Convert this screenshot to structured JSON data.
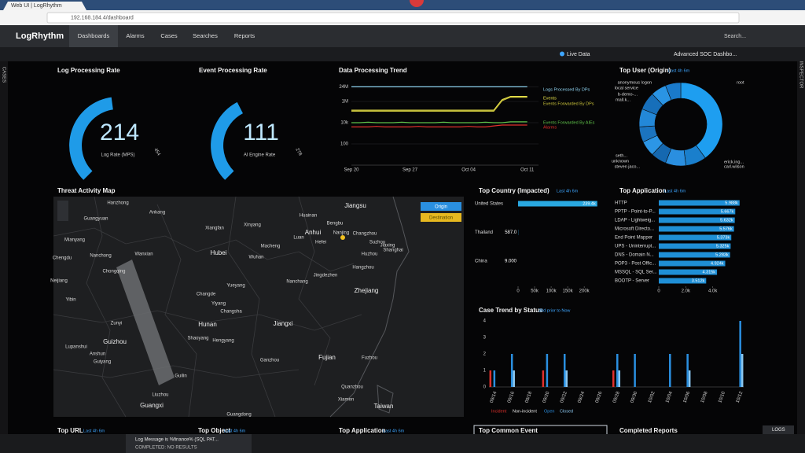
{
  "browser": {
    "tab": "Web UI | LogRhythm",
    "url": "192.168.184.4/dashboard"
  },
  "nav": {
    "brand": "LogRhythm",
    "items": [
      "Dashboards",
      "Alarms",
      "Cases",
      "Searches",
      "Reports"
    ],
    "search": "Search..."
  },
  "toolbar": {
    "live": "Live Data",
    "dashboard": "Advanced SOC Dashbo..."
  },
  "sidebars": {
    "left": "CASES",
    "right": "INSPECTOR"
  },
  "gauges": [
    {
      "title": "Log Processing Rate",
      "value": 214,
      "caption": "Log Rate (MPS)",
      "max": 454
    },
    {
      "title": "Event Processing Rate",
      "value": 111,
      "caption": "AI Engine Rate",
      "max": 278
    }
  ],
  "trend": {
    "title": "Data Processing Trend",
    "log_scale": true,
    "grid": true,
    "categories": [
      "Sep 20",
      null,
      null,
      null,
      null,
      null,
      null,
      "Sep 27",
      null,
      null,
      null,
      null,
      null,
      null,
      "Oct 04",
      null,
      null,
      null,
      null,
      null,
      null,
      "Oct 11"
    ],
    "ylim": [
      1,
      60000000
    ],
    "yticks": [
      {
        "value": 24000000,
        "label": "24M"
      },
      {
        "value": 1000000,
        "label": "1M"
      },
      {
        "value": 10000,
        "label": "10k"
      },
      100
    ],
    "series": [
      {
        "name": "Logs Processed By DPs",
        "color": "#8fd3f0",
        "values": [
          24000000,
          24000000,
          24000000,
          24000000,
          24000000,
          24000000,
          24000000,
          24000000,
          24000000,
          24000000,
          24000000,
          24000000,
          24000000,
          24000000,
          24000000,
          24000000,
          24000000,
          24000000,
          24000000,
          24000000,
          24000000,
          24000000
        ]
      },
      {
        "name": "Events",
        "color": "#e6e04a",
        "values": [
          150000,
          150000,
          150000,
          150000,
          150000,
          150000,
          150000,
          150000,
          150000,
          150000,
          150000,
          150000,
          150000,
          150000,
          150000,
          150000,
          150000,
          150000,
          1500000,
          3000000,
          3000000,
          3000000
        ]
      },
      {
        "name": "Events Forwarded By DPs",
        "color": "#c9c23a",
        "values": [
          120000,
          120000,
          120000,
          120000,
          120000,
          120000,
          120000,
          120000,
          120000,
          120000,
          120000,
          120000,
          120000,
          120000,
          120000,
          120000,
          120000,
          120000,
          1200000,
          2500000,
          2500000,
          2500000
        ]
      },
      {
        "name": "Events Forwarded By AIEs",
        "color": "#5fc24a",
        "values": [
          10000,
          10000,
          11000,
          10000,
          10000,
          10000,
          11000,
          10000,
          10000,
          10000,
          10000,
          11000,
          10000,
          10000,
          10000,
          10000,
          11000,
          10000,
          10000,
          12000,
          12000,
          12000
        ]
      },
      {
        "name": "Alarms",
        "color": "#e0302c",
        "values": [
          4000,
          4000,
          4000,
          4500,
          4000,
          4000,
          4000,
          4000,
          4500,
          4000,
          4000,
          4000,
          4000,
          4000,
          4500,
          4000,
          4000,
          5000,
          6000,
          6000,
          6000,
          6000
        ]
      }
    ]
  },
  "top_user": {
    "title": "Top User (Origin)",
    "subtitle": "Last 4h 6m",
    "labels": [
      "root",
      "erick.ing...",
      "carl.wilson",
      "steven jaco...",
      "unknown",
      "seth...",
      "mall.k...",
      "b-demo-...",
      "local service",
      "anonymous logon"
    ],
    "values": [
      40,
      8,
      8,
      6,
      6,
      6,
      7,
      7,
      6,
      6
    ]
  },
  "map": {
    "title": "Threat Activity Map",
    "buttons": [
      "Origin",
      "Destination"
    ],
    "places": [
      "Hanzhong",
      "Ankang",
      "Guangyuan",
      "Xiangfan",
      "Xinyang",
      "Huainan",
      "Jiangsu",
      "Bengbu",
      "Anhui",
      "Nanjing",
      "Changzhou",
      "Luan",
      "Hefei",
      "Suzhou",
      "Shanghai",
      "Hubei",
      "Wuhan",
      "Macheng",
      "Huzhou",
      "Jiaxing",
      "Wanxian",
      "Nanchong",
      "Mianyang",
      "Chengdu",
      "Zhejiang",
      "Hangzhou",
      "Changde",
      "Yiyang",
      "Yueyang",
      "Changsha",
      "Nanchang",
      "Jingdezhen",
      "Hunan",
      "Jiangxi",
      "Guizhou",
      "Zunyi",
      "Guiyang",
      "Hengyang",
      "Ganzhou",
      "Fujian",
      "Fuzhou",
      "Guilin",
      "Guangxi",
      "Liuzhou",
      "Guangdong",
      "Taiwan",
      "Xiamen",
      "Quanzhou",
      "Shaoyang",
      "Lupanshui",
      "Anshun",
      "Yibin",
      "Chongqing",
      "Neijiang"
    ]
  },
  "top_country": {
    "title": "Top Country (Impacted)",
    "subtitle": "Last 4h 6m",
    "categories": [
      "United States",
      "Thailand",
      "China"
    ],
    "values": [
      239400,
      587,
      9
    ],
    "value_labels": [
      "239.4k",
      "587.0",
      "9.000"
    ],
    "color": "#29a8e0",
    "xlim": [
      0,
      240000
    ],
    "xticks": [
      0,
      {
        "value": 50000,
        "label": "50k"
      },
      {
        "value": 100000,
        "label": "100k"
      },
      {
        "value": 150000,
        "label": "150k"
      },
      {
        "value": 200000,
        "label": "200k"
      }
    ]
  },
  "top_application": {
    "title": "Top Application",
    "subtitle": "Last 4h 6m",
    "categories": [
      "HTTP",
      "PPTP - Point-to-P...",
      "LDAP - Lightweig...",
      "Microsoft Directo...",
      "End Point Mapper",
      "UPS - Uninterrupt...",
      "DNS - Domain N...",
      "POP3 - Post Offic...",
      "MSSQL - SQL Ser...",
      "BOOTP - Server"
    ],
    "values": [
      5988,
      5667,
      5632,
      5576,
      5373,
      5325,
      5283,
      4924,
      4315,
      3512
    ],
    "value_labels": [
      "5.988k",
      "5.667k",
      "5.632k",
      "5.576k",
      "5.373k",
      "5.325k",
      "5.283k",
      "4.924k",
      "4.315k",
      "3.512k"
    ],
    "color": "#1f8fd6",
    "xlim": [
      0,
      6000
    ],
    "xticks": [
      0,
      {
        "value": 2000,
        "label": "2.0k"
      },
      {
        "value": 4000,
        "label": "4.0k"
      }
    ]
  },
  "case_trend": {
    "title": "Case Trend by Status",
    "subtitle": "30d prior to Now",
    "categories": [
      "09/14",
      null,
      "09/16",
      null,
      "09/18",
      null,
      "09/20",
      null,
      "09/22",
      null,
      "09/24",
      null,
      "09/26",
      null,
      "09/28",
      null,
      "09/30",
      null,
      "10/02",
      null,
      "10/04",
      null,
      "10/06",
      null,
      "10/08",
      null,
      "10/10",
      null,
      "10/12"
    ],
    "ylim": [
      0,
      4
    ],
    "yticks": [
      0,
      1,
      2,
      3,
      4
    ],
    "series": [
      {
        "name": "Incident",
        "color": "#e0302c",
        "values": [
          1,
          0,
          0,
          0,
          0,
          0,
          1,
          0,
          0,
          0,
          0,
          0,
          0,
          0,
          1,
          0,
          0,
          0,
          0,
          0,
          0,
          0,
          0,
          0,
          0,
          0,
          0,
          0,
          0
        ]
      },
      {
        "name": "Non-incident",
        "color": "#e8e8e8",
        "values": [
          0,
          0,
          0,
          0,
          0,
          0,
          0,
          0,
          0,
          0,
          0,
          0,
          0,
          0,
          0,
          0,
          0,
          0,
          0,
          0,
          0,
          0,
          0,
          0,
          0,
          0,
          0,
          0,
          0
        ]
      },
      {
        "name": "Open",
        "color": "#2a8fe0",
        "values": [
          1,
          0,
          2,
          0,
          0,
          0,
          2,
          0,
          2,
          0,
          0,
          0,
          0,
          0,
          2,
          0,
          2,
          0,
          0,
          0,
          2,
          0,
          2,
          0,
          0,
          0,
          0,
          0,
          4
        ]
      },
      {
        "name": "Closed",
        "color": "#8cc8f0",
        "values": [
          0,
          0,
          1,
          0,
          0,
          0,
          0,
          0,
          1,
          0,
          0,
          0,
          0,
          0,
          1,
          0,
          0,
          0,
          0,
          0,
          0,
          0,
          1,
          0,
          0,
          0,
          0,
          0,
          2
        ]
      }
    ]
  },
  "bottom_row": [
    {
      "title": "Top URL",
      "subtitle": "Last 4h 6m"
    },
    {
      "title": "Top Object",
      "subtitle": "Last 4h 6m"
    },
    {
      "title": "Top Application",
      "subtitle": "Last 4h 6m"
    },
    {
      "title": "Top Common Event"
    },
    {
      "title": "Completed Reports"
    }
  ],
  "status": {
    "search": "Log Message is %finance% (SQL PAT...",
    "result": "COMPLETED: NO RESULTS",
    "logs": "LOGS"
  }
}
